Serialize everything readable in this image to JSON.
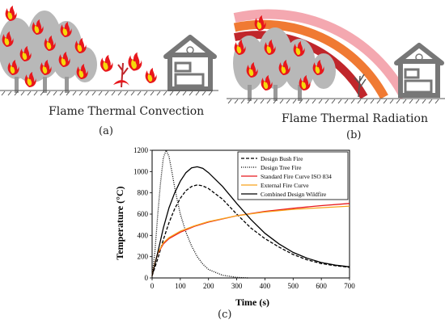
{
  "panel_a": {
    "title": "Flame Thermal Convection",
    "label": "(a)"
  },
  "panel_b": {
    "title": "Flame Thermal Radiation",
    "label": "(b)"
  },
  "panel_c": {
    "label": "(c)"
  },
  "colors": {
    "tree": "#b8b8b8",
    "flame_outer": "#e8171c",
    "flame_inner": "#f5d90a",
    "house": "#777777",
    "ground": "#555555",
    "arc_red": "#c0262b",
    "arc_orange": "#f07a33",
    "arc_pink": "#f4a8b0"
  },
  "chart_data": {
    "type": "line",
    "title": "",
    "xlabel": "Time (s)",
    "ylabel": "Temperature (°C)",
    "xlim": [
      0,
      700
    ],
    "ylim": [
      0,
      1200
    ],
    "x_ticks": [
      0,
      100,
      200,
      300,
      400,
      500,
      600,
      700
    ],
    "y_ticks": [
      0,
      200,
      400,
      600,
      800,
      1000,
      1200
    ],
    "legend_position": "top-right",
    "series": [
      {
        "name": "Design Bush Fire",
        "color": "#000000",
        "style": "dashed",
        "x": [
          0,
          20,
          40,
          60,
          80,
          100,
          120,
          140,
          160,
          180,
          200,
          250,
          300,
          350,
          400,
          450,
          500,
          550,
          600,
          650,
          700
        ],
        "y": [
          20,
          180,
          360,
          520,
          650,
          750,
          820,
          860,
          875,
          865,
          840,
          740,
          600,
          470,
          370,
          290,
          220,
          170,
          135,
          115,
          100
        ]
      },
      {
        "name": "Design Tree Fire",
        "color": "#000000",
        "style": "dotted",
        "x": [
          0,
          10,
          20,
          30,
          40,
          50,
          60,
          70,
          80,
          90,
          100,
          120,
          140,
          160,
          180,
          200,
          250,
          300,
          340
        ],
        "y": [
          20,
          250,
          600,
          900,
          1130,
          1200,
          1140,
          1000,
          850,
          720,
          600,
          430,
          300,
          200,
          130,
          80,
          25,
          5,
          0
        ]
      },
      {
        "name": "Standard Fire Curve ISO 834",
        "color": "#e8171c",
        "style": "solid",
        "x": [
          0,
          10,
          20,
          40,
          60,
          100,
          150,
          200,
          300,
          400,
          500,
          600,
          700
        ],
        "y": [
          20,
          140,
          230,
          320,
          370,
          430,
          485,
          525,
          585,
          625,
          655,
          680,
          700
        ]
      },
      {
        "name": "External Fire Curve",
        "color": "#f7a21b",
        "style": "solid",
        "x": [
          0,
          10,
          20,
          40,
          60,
          100,
          150,
          200,
          300,
          400,
          500,
          600,
          700
        ],
        "y": [
          20,
          140,
          235,
          330,
          380,
          440,
          490,
          530,
          585,
          620,
          645,
          660,
          675
        ]
      },
      {
        "name": "Combined Design Wildfire",
        "color": "#000000",
        "style": "solid",
        "x": [
          0,
          20,
          40,
          60,
          80,
          100,
          120,
          140,
          160,
          180,
          200,
          250,
          300,
          350,
          400,
          450,
          500,
          550,
          600,
          650,
          700
        ],
        "y": [
          20,
          240,
          470,
          660,
          800,
          910,
          990,
          1035,
          1045,
          1030,
          990,
          860,
          700,
          550,
          420,
          320,
          240,
          185,
          145,
          120,
          105
        ]
      }
    ]
  }
}
